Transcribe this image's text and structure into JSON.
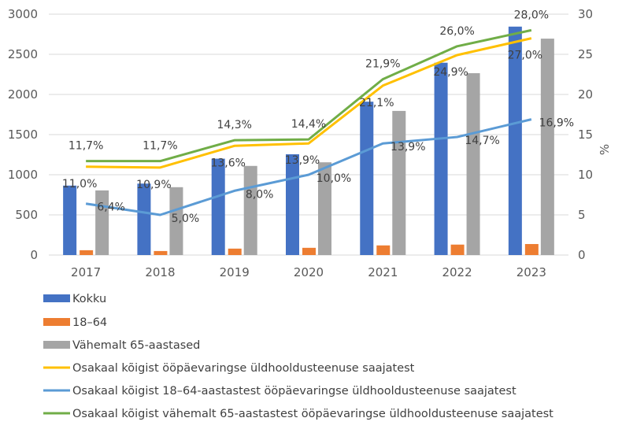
{
  "chart_data": {
    "type": "bar+line",
    "categories": [
      "2017",
      "2018",
      "2019",
      "2020",
      "2021",
      "2022",
      "2023"
    ],
    "y_left": {
      "lim": [
        0,
        3000
      ],
      "ticks": [
        "0",
        "500",
        "1000",
        "1500",
        "2000",
        "2500",
        "3000"
      ]
    },
    "y_right": {
      "lim": [
        0,
        30
      ],
      "ticks": [
        "0",
        "5",
        "10",
        "15",
        "20",
        "25",
        "30"
      ],
      "label": "%"
    },
    "grid": true,
    "legend_position": "bottom",
    "bar_series": [
      {
        "name": "Kokku",
        "color": "#4472C4",
        "values": [
          865,
          890,
          1200,
          1255,
          1910,
          2395,
          2845
        ]
      },
      {
        "name": "18–64",
        "color": "#ED7D31",
        "values": [
          60,
          50,
          80,
          90,
          120,
          130,
          137
        ]
      },
      {
        "name": "Vähemalt 65-aastased",
        "color": "#A5A5A5",
        "values": [
          805,
          845,
          1110,
          1155,
          1795,
          2265,
          2695
        ]
      }
    ],
    "line_series": [
      {
        "name": "Osakaal kõigist ööpäevaringse üldhooldusteenuse saajatest",
        "color": "#FFC000",
        "values": [
          11.0,
          10.9,
          13.6,
          13.9,
          21.1,
          24.9,
          27.0
        ],
        "labels": [
          "11,0%",
          "10,9%",
          "13,6%",
          "13,9%",
          "21,1%",
          "24,9%",
          "27,0%"
        ]
      },
      {
        "name": "Osakaal kõigist 18–64-aastastest ööpäevaringse üldhooldusteenuse saajatest",
        "color": "#5B9BD5",
        "values": [
          6.4,
          5.0,
          8.0,
          10.0,
          13.9,
          14.7,
          16.9
        ],
        "labels": [
          "6,4%",
          "5,0%",
          "8,0%",
          "10,0%",
          "13,9%",
          "14,7%",
          "16,9%"
        ]
      },
      {
        "name": "Osakaal kõigist vähemalt 65-aastastest ööpäevaringse üldhooldusteenuse saajatest",
        "color": "#70AD47",
        "values": [
          11.7,
          11.7,
          14.3,
          14.4,
          21.9,
          26.0,
          28.0
        ],
        "labels": [
          "11,7%",
          "11,7%",
          "14,3%",
          "14,4%",
          "21,9%",
          "26,0%",
          "28,0%"
        ]
      }
    ]
  }
}
